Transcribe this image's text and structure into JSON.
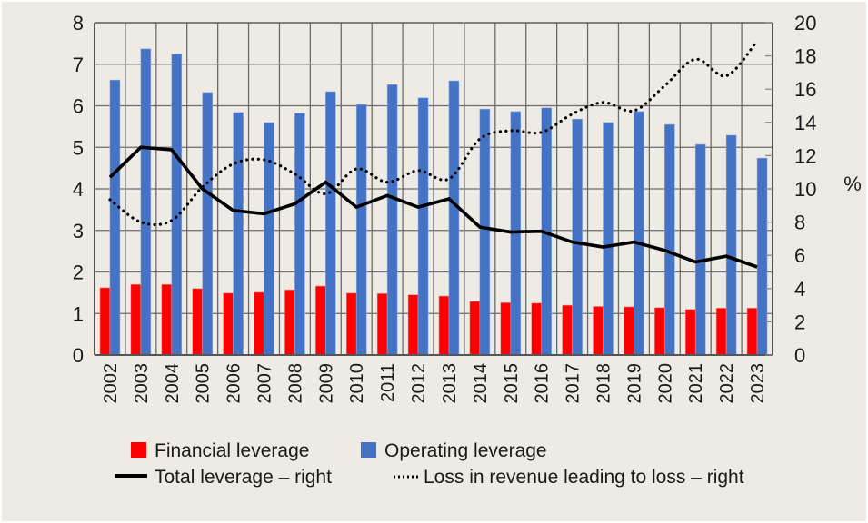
{
  "chart_data": {
    "type": "bar",
    "title": "",
    "xlabel": "",
    "ylabel": "",
    "ylabel_right": "%",
    "ylim": [
      0,
      8
    ],
    "ylim_right": [
      0,
      20
    ],
    "yticks": [
      "0",
      "1",
      "2",
      "3",
      "4",
      "5",
      "6",
      "7",
      "8"
    ],
    "yticks_right": [
      "0",
      "2",
      "4",
      "6",
      "8",
      "10",
      "12",
      "14",
      "16",
      "18",
      "20"
    ],
    "grid": true,
    "legend_position": "bottom",
    "categories": [
      "2002",
      "2003",
      "2004",
      "2005",
      "2006",
      "2007",
      "2008",
      "2009",
      "2010",
      "2011",
      "2012",
      "2013",
      "2014",
      "2015",
      "2016",
      "2017",
      "2018",
      "2019",
      "2020",
      "2021",
      "2022",
      "2023"
    ],
    "series": [
      {
        "name": "Financial leverage",
        "type": "bar",
        "axis": "left",
        "color": "#ff0000",
        "values": [
          1.62,
          1.7,
          1.7,
          1.6,
          1.49,
          1.51,
          1.57,
          1.66,
          1.49,
          1.48,
          1.45,
          1.42,
          1.29,
          1.26,
          1.25,
          1.2,
          1.17,
          1.16,
          1.14,
          1.1,
          1.13,
          1.13
        ]
      },
      {
        "name": "Operating leverage",
        "type": "bar",
        "axis": "left",
        "color": "#4472c4",
        "values": [
          6.62,
          7.37,
          7.24,
          6.32,
          5.84,
          5.6,
          5.82,
          6.34,
          6.03,
          6.51,
          6.19,
          6.6,
          5.92,
          5.86,
          5.95,
          5.68,
          5.6,
          5.86,
          5.55,
          5.07,
          5.29,
          4.74
        ]
      },
      {
        "name": "Total leverage – right",
        "type": "line",
        "axis": "right",
        "color": "#000000",
        "style": "solid",
        "values": [
          10.7,
          12.5,
          12.35,
          10.0,
          8.7,
          8.5,
          9.1,
          10.4,
          8.9,
          9.6,
          8.9,
          9.4,
          7.7,
          7.4,
          7.45,
          6.8,
          6.5,
          6.8,
          6.3,
          5.6,
          5.95,
          5.3
        ]
      },
      {
        "name": "Loss in revenue leading to loss – right",
        "type": "line",
        "axis": "right",
        "color": "#000000",
        "style": "dotted",
        "values": [
          9.35,
          8.0,
          8.1,
          10.1,
          11.5,
          11.75,
          10.9,
          9.7,
          11.2,
          10.4,
          11.1,
          10.6,
          13.0,
          13.5,
          13.4,
          14.5,
          15.2,
          14.7,
          16.2,
          17.8,
          16.8,
          18.9
        ]
      }
    ]
  },
  "legend": {
    "items": [
      {
        "label": "Financial leverage",
        "marker": "red-square"
      },
      {
        "label": "Operating leverage",
        "marker": "blue-square"
      },
      {
        "label": "Total leverage – right",
        "marker": "solid-line"
      },
      {
        "label": "Loss in revenue leading to loss – right",
        "marker": "dotted-line"
      }
    ]
  }
}
